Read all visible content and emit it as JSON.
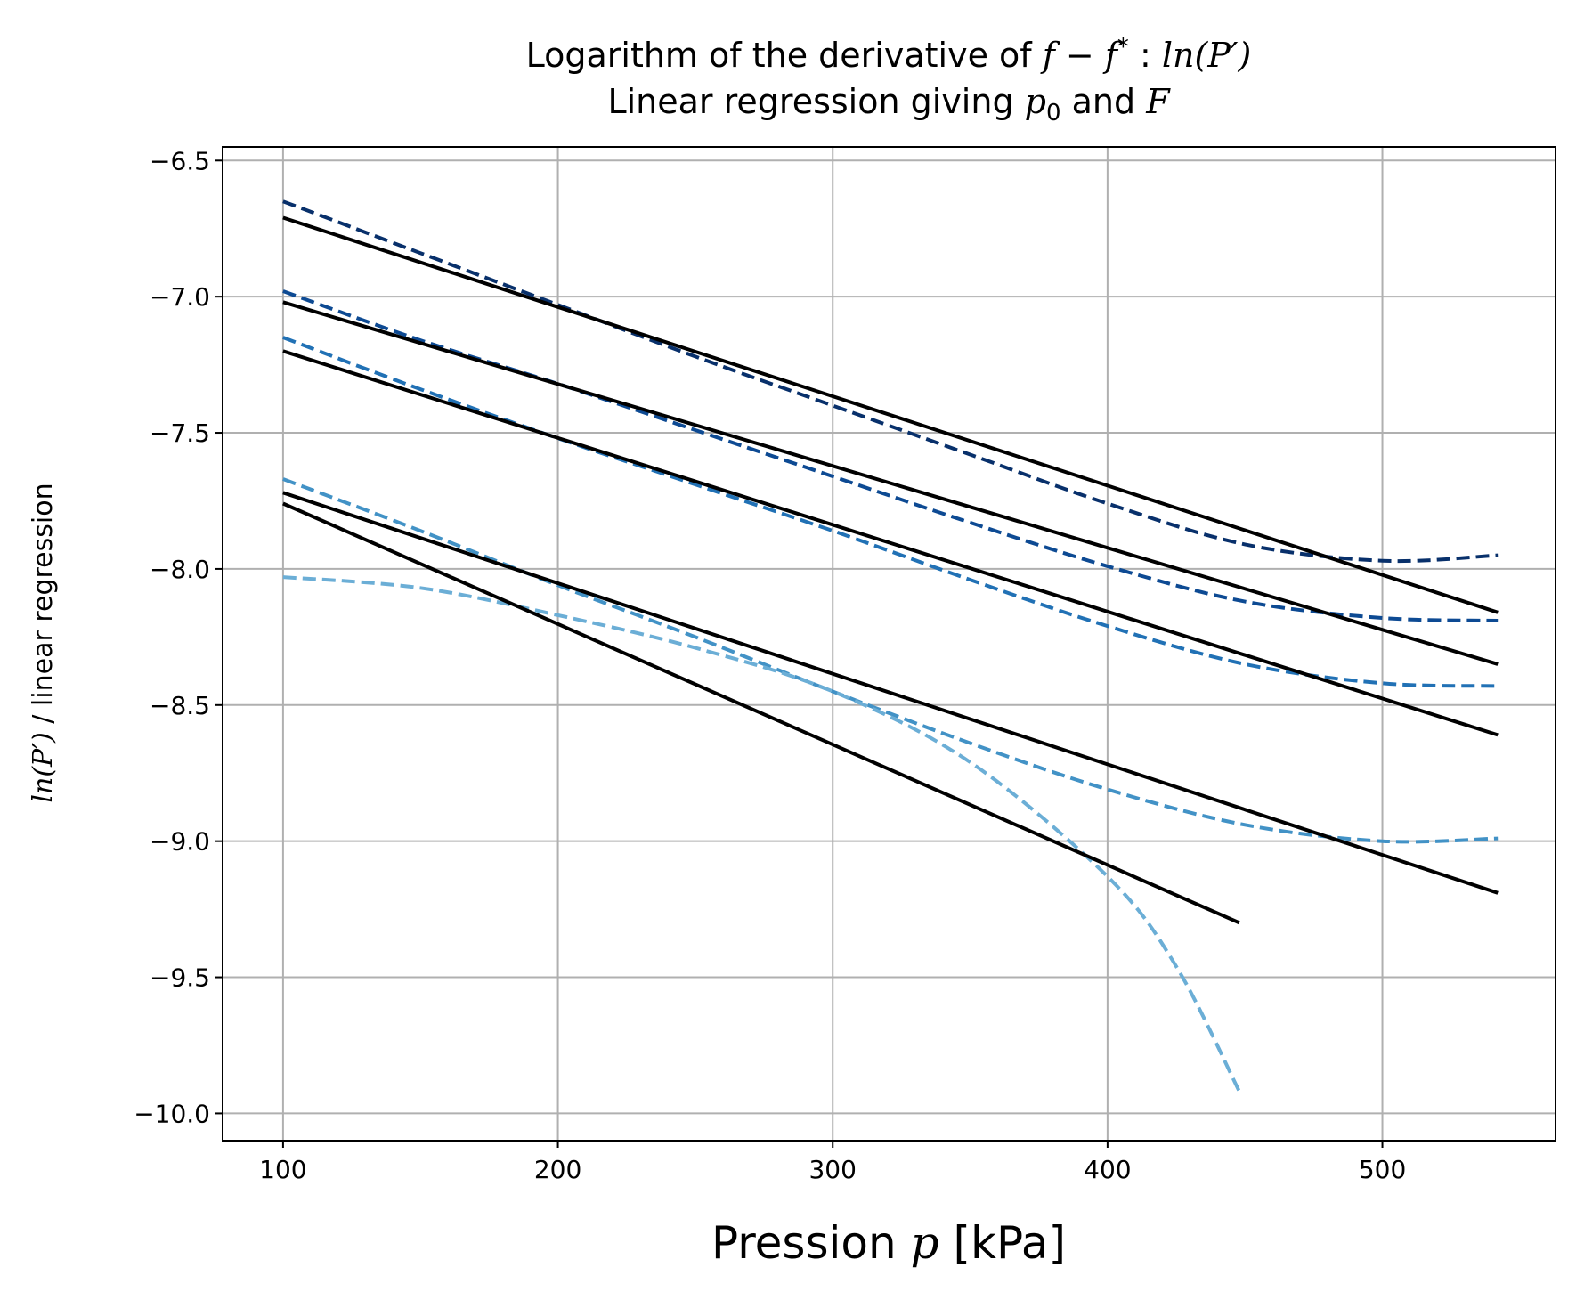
{
  "chart_data": {
    "type": "line",
    "title_parts": {
      "line1_text": "Logarithm of the derivative of ",
      "line1_f": "f",
      "line1_minus": " − ",
      "line1_fstar": "f",
      "line1_star": "*",
      "line1_colon": " : ",
      "line1_ln": "ln",
      "line1_paren": "(P′)",
      "line2_text": "Linear regression giving ",
      "line2_p": "p",
      "line2_sub": "0",
      "line2_and": " and ",
      "line2_F": "F"
    },
    "xlabel_parts": {
      "pre": "Pression ",
      "var": "p",
      "unit": " [kPa]"
    },
    "ylabel_parts": {
      "ln": "ln",
      "paren": "(P′)",
      "rest": " / linear regression"
    },
    "xlim": [
      78,
      563
    ],
    "ylim": [
      -10.1,
      -6.45
    ],
    "x_ticks": [
      100,
      200,
      300,
      400,
      500
    ],
    "y_ticks": [
      -6.5,
      -7.0,
      -7.5,
      -8.0,
      -8.5,
      -9.0,
      -9.5,
      -10.0
    ],
    "x_tick_labels": [
      "100",
      "200",
      "300",
      "400",
      "500"
    ],
    "y_tick_labels": [
      "−6.5",
      "−7.0",
      "−7.5",
      "−8.0",
      "−8.5",
      "−9.0",
      "−9.5",
      "−10.0"
    ],
    "grid": true,
    "series": [
      {
        "style": "dashed",
        "color": "#08306b",
        "x": [
          100,
          150,
          200,
          250,
          300,
          350,
          400,
          450,
          500,
          542
        ],
        "y": [
          -6.65,
          -6.84,
          -7.03,
          -7.22,
          -7.4,
          -7.58,
          -7.76,
          -7.91,
          -7.97,
          -7.95
        ]
      },
      {
        "style": "dashed",
        "color": "#0d4a93",
        "x": [
          100,
          150,
          200,
          250,
          300,
          350,
          400,
          450,
          500,
          542
        ],
        "y": [
          -6.98,
          -7.16,
          -7.32,
          -7.49,
          -7.66,
          -7.83,
          -7.99,
          -8.12,
          -8.18,
          -8.19
        ]
      },
      {
        "style": "dashed",
        "color": "#2171b5",
        "x": [
          100,
          150,
          200,
          250,
          300,
          350,
          400,
          450,
          500,
          542
        ],
        "y": [
          -7.15,
          -7.34,
          -7.52,
          -7.69,
          -7.86,
          -8.04,
          -8.21,
          -8.35,
          -8.42,
          -8.43
        ]
      },
      {
        "style": "dashed",
        "color": "#4292c6",
        "x": [
          100,
          150,
          200,
          250,
          300,
          350,
          400,
          450,
          500,
          542
        ],
        "y": [
          -7.67,
          -7.86,
          -8.06,
          -8.25,
          -8.45,
          -8.64,
          -8.81,
          -8.94,
          -9.0,
          -8.99
        ]
      },
      {
        "style": "dashed",
        "color": "#6baed6",
        "x": [
          100,
          150,
          200,
          250,
          300,
          350,
          400,
          425,
          448
        ],
        "y": [
          -8.03,
          -8.07,
          -8.17,
          -8.29,
          -8.45,
          -8.71,
          -9.13,
          -9.46,
          -9.92
        ]
      },
      {
        "style": "solid",
        "color": "#000000",
        "x": [
          100,
          542
        ],
        "y": [
          -6.71,
          -8.16
        ]
      },
      {
        "style": "solid",
        "color": "#000000",
        "x": [
          100,
          542
        ],
        "y": [
          -7.02,
          -8.35
        ]
      },
      {
        "style": "solid",
        "color": "#000000",
        "x": [
          100,
          542
        ],
        "y": [
          -7.2,
          -8.61
        ]
      },
      {
        "style": "solid",
        "color": "#000000",
        "x": [
          100,
          542
        ],
        "y": [
          -7.72,
          -9.19
        ]
      },
      {
        "style": "solid",
        "color": "#000000",
        "x": [
          100,
          448
        ],
        "y": [
          -7.76,
          -9.3
        ]
      }
    ]
  }
}
